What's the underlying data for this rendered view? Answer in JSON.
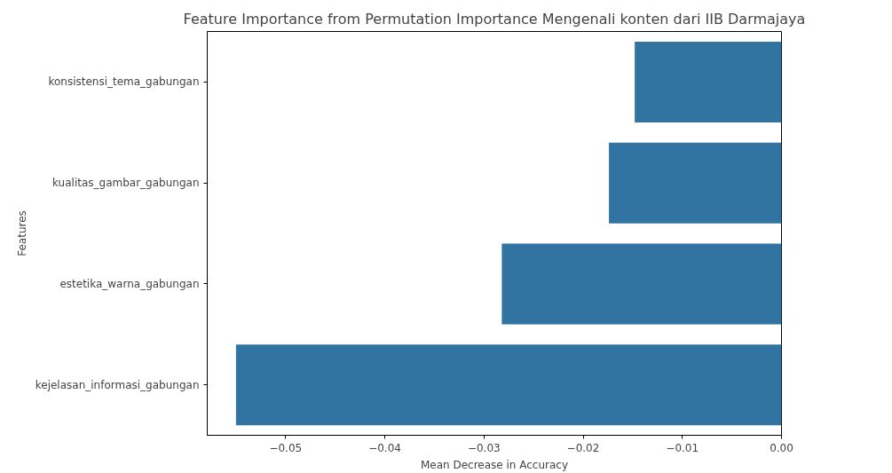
{
  "chart_data": {
    "type": "bar",
    "orientation": "horizontal",
    "title": "Feature Importance from Permutation Importance Mengenali konten dari IIB Darmajaya",
    "xlabel": "Mean Decrease in Accuracy",
    "ylabel": "Features",
    "categories": [
      "konsistensi_tema_gabungan",
      "kualitas_gambar_gabungan",
      "estetika_warna_gabungan",
      "kejelasan_informasi_gabungan"
    ],
    "values": [
      -0.0148,
      -0.0174,
      -0.0282,
      -0.055
    ],
    "color": "#3274a1",
    "xlim": [
      -0.0579,
      0.0
    ],
    "xticks": [
      {
        "value": -0.05,
        "label": "−0.05"
      },
      {
        "value": -0.04,
        "label": "−0.04"
      },
      {
        "value": -0.03,
        "label": "−0.03"
      },
      {
        "value": -0.02,
        "label": "−0.02"
      },
      {
        "value": -0.01,
        "label": "−0.01"
      },
      {
        "value": 0.0,
        "label": "0.00"
      }
    ],
    "grid": false
  }
}
